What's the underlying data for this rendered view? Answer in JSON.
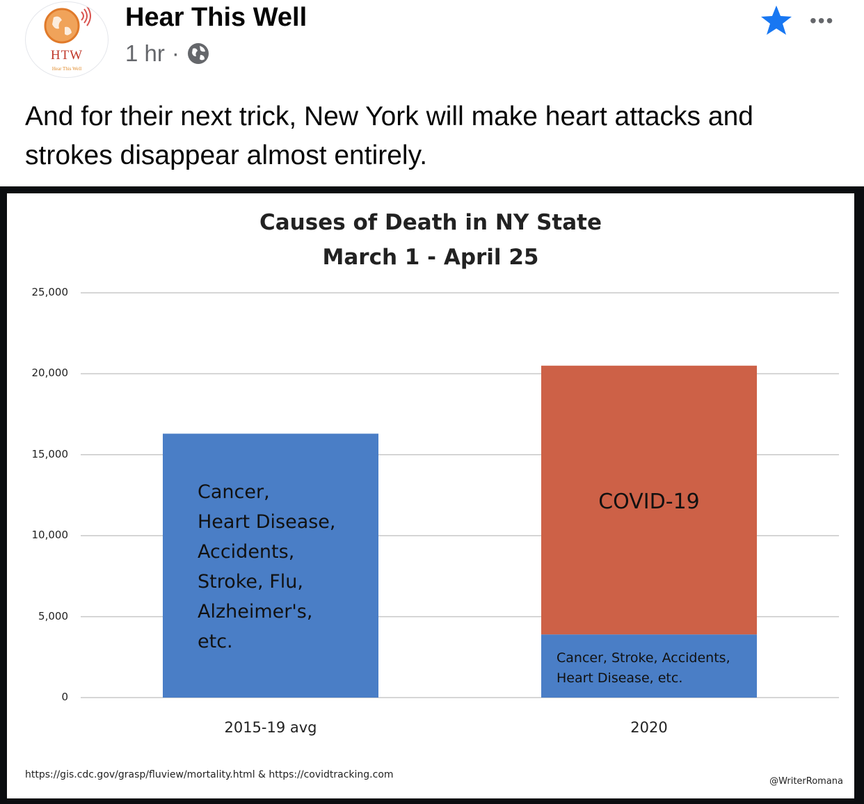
{
  "post": {
    "avatar_text": "HTW",
    "avatar_subtext": "Hear This Well",
    "author": "Hear This Well",
    "time": "1 hr",
    "separator": "·",
    "more_label": "•••",
    "text": "And for their next trick, New York will make heart attacks and strokes disappear almost entirely.",
    "icons": {
      "audience": "globe-icon",
      "favorite": "star-icon",
      "more": "more-icon"
    },
    "colors": {
      "star": "#1877f2",
      "meta": "#65676b"
    }
  },
  "chart_data": {
    "type": "bar",
    "stacked": true,
    "title_line1": "Causes of Death in NY State",
    "title_line2": "March 1 - April 25",
    "categories": [
      "2015-19 avg",
      "2020"
    ],
    "series": [
      {
        "values": [
          16300,
          3900
        ],
        "color": "#4a7ec6"
      },
      {
        "values": [
          0,
          16600
        ],
        "color": "#cd6147"
      }
    ],
    "ylim": [
      0,
      25000
    ],
    "yticks": [
      0,
      5000,
      10000,
      15000,
      20000,
      25000
    ],
    "ytick_labels": [
      "0",
      "5,000",
      "10,000",
      "15,000",
      "20,000",
      "25,000"
    ],
    "grid": true,
    "bar_annotations": {
      "bar1": [
        "Cancer,",
        "Heart Disease,",
        "Accidents,",
        "Stroke, Flu,",
        "Alzheimer's,",
        "etc."
      ],
      "bar2_top": "COVID-19",
      "bar2_bottom": [
        "Cancer, Stroke, Accidents,",
        "Heart Disease, etc."
      ]
    },
    "source": "https://gis.cdc.gov/grasp/fluview/mortality.html & https://covidtracking.com",
    "credit": "@WriterRomana"
  }
}
